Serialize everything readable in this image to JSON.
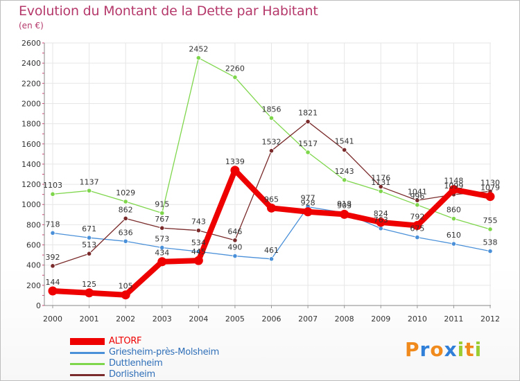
{
  "header": {
    "title": "Evolution du Montant de la Dette par Habitant",
    "subtitle": "(en €)"
  },
  "chart_data": {
    "type": "line",
    "x": [
      "2000",
      "2001",
      "2002",
      "2003",
      "2004",
      "2005",
      "2006",
      "2007",
      "2008",
      "2009",
      "2010",
      "2011",
      "2012"
    ],
    "ylim": [
      0,
      2600
    ],
    "yticks": [
      0,
      200,
      400,
      600,
      800,
      1000,
      1200,
      1400,
      1600,
      1800,
      2000,
      2200,
      2400,
      2600
    ],
    "grid": true,
    "legend_position": "bottom-left",
    "series": [
      {
        "name": "Griesheim-près-Molsheim",
        "color": "#4a90d9",
        "values": [
          718,
          671,
          636,
          573,
          534,
          490,
          461,
          977,
          918,
          763,
          675,
          610,
          538
        ]
      },
      {
        "name": "Duttlenheim",
        "color": "#7ed64b",
        "values": [
          1103,
          1137,
          1029,
          915,
          2452,
          2260,
          1856,
          1517,
          1243,
          1131,
          996,
          860,
          755
        ]
      },
      {
        "name": "Dorlisheim",
        "color": "#7a2a2a",
        "values": [
          392,
          513,
          862,
          767,
          743,
          646,
          1532,
          1821,
          1541,
          1176,
          1041,
          1099,
          1130
        ]
      },
      {
        "name": "ALTORF",
        "color": "#ee0000",
        "values": [
          144,
          125,
          105,
          434,
          445,
          1339,
          965,
          928,
          903,
          824,
          792,
          1148,
          1079
        ]
      }
    ]
  },
  "legend": {
    "items": [
      "ALTORF",
      "Griesheim-près-Molsheim",
      "Duttlenheim",
      "Dorlisheim"
    ]
  },
  "logo": {
    "letters": [
      "P",
      "r",
      "o",
      "x",
      "i",
      "t",
      "i"
    ],
    "colors": [
      "#f08a1d",
      "#2f7fd8",
      "#f08a1d",
      "#2f7fd8",
      "#9acd32",
      "#f08a1d",
      "#9acd32"
    ]
  }
}
